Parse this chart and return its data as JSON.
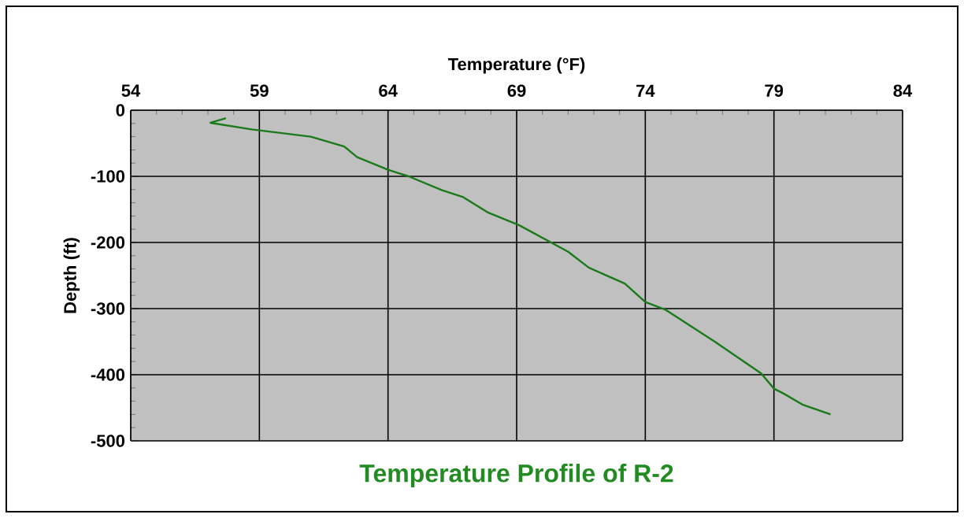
{
  "chart_data": {
    "type": "line",
    "title": "Temperature Profile of R-2",
    "xlabel": "Temperature (°F)",
    "ylabel": "Depth (ft)",
    "xlim": [
      54,
      84
    ],
    "xticks": [
      54,
      59,
      64,
      69,
      74,
      79,
      84
    ],
    "ylim": [
      -500,
      0
    ],
    "yticks": [
      -500,
      -400,
      -300,
      -200,
      -100,
      0
    ],
    "grid": true,
    "marker": "none",
    "line_style": "solid",
    "series": [
      {
        "color": "#1a7a1a",
        "x": [
          57.7,
          57.1,
          58.7,
          61.0,
          62.3,
          62.8,
          64.0,
          64.8,
          66.1,
          66.9,
          67.9,
          69.1,
          71.0,
          71.8,
          73.2,
          74.0,
          74.8,
          76.7,
          78.5,
          79.0,
          79.4,
          80.1,
          81.2
        ],
        "values": [
          -12,
          -19,
          -29,
          -40,
          -55,
          -71,
          -90,
          -100,
          -121,
          -131,
          -155,
          -174,
          -214,
          -238,
          -262,
          -290,
          -302,
          -350,
          -398,
          -421,
          -429,
          -445,
          -460
        ]
      }
    ]
  }
}
